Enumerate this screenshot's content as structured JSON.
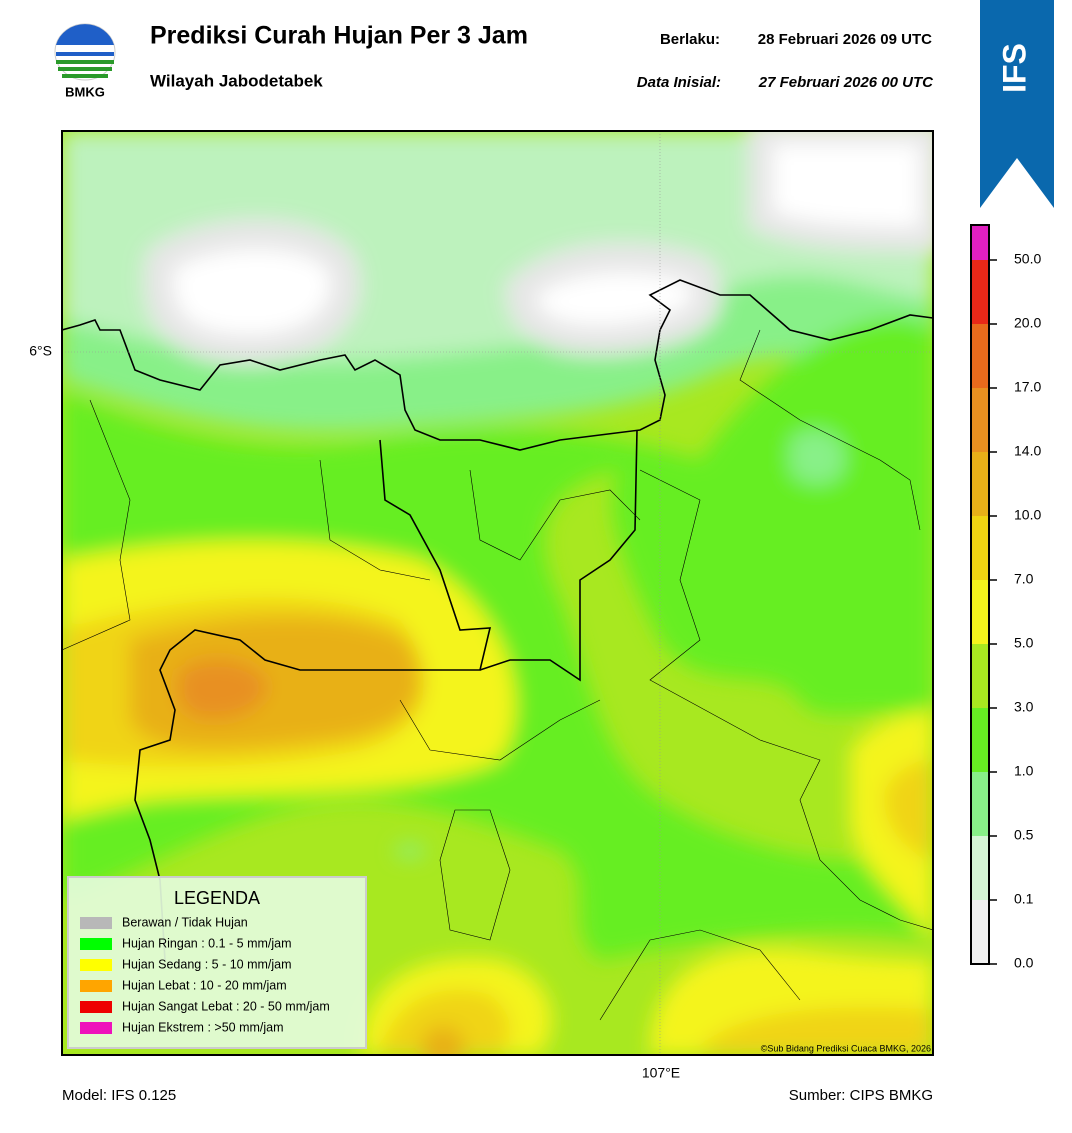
{
  "header": {
    "logo_text": "BMKG",
    "title": "Prediksi Curah Hujan Per 3 Jam",
    "subtitle": "Wilayah Jabodetabek",
    "valid_label": "Berlaku:",
    "valid_time": "28 Februari 2026 09 UTC",
    "init_label": "Data Inisial:",
    "init_time": "27 Februari 2026 00 UTC",
    "badge": "IFS"
  },
  "map": {
    "lat_label": "6°S",
    "lon_label": "107°E",
    "credit": "©Sub Bidang Prediksi Cuaca BMKG, 2026"
  },
  "legend": {
    "title": "LEGENDA",
    "items": [
      {
        "label": "Berawan / Tidak Hujan",
        "color": "#b8b8b8"
      },
      {
        "label": "Hujan Ringan : 0.1 - 5 mm/jam",
        "color": "#00ff00"
      },
      {
        "label": "Hujan Sedang : 5 - 10 mm/jam",
        "color": "#ffff00"
      },
      {
        "label": "Hujan Lebat : 10 - 20 mm/jam",
        "color": "#ffa500"
      },
      {
        "label": "Hujan Sangat Lebat : 20 - 50 mm/jam",
        "color": "#ee0000"
      },
      {
        "label": "Hujan Ekstrem : >50 mm/jam",
        "color": "#ee11bb"
      }
    ]
  },
  "colorbar": {
    "ticks": [
      "0.0",
      "0.1",
      "0.5",
      "1.0",
      "3.0",
      "5.0",
      "7.0",
      "10.0",
      "14.0",
      "17.0",
      "20.0",
      "50.0"
    ],
    "colors": [
      "#f0f0f0",
      "#d6f6d6",
      "#88f088",
      "#66ee22",
      "#a8e820",
      "#f4f41c",
      "#f0d412",
      "#e8b018",
      "#e89020",
      "#e86a1c",
      "#e82818",
      "#e020c0"
    ]
  },
  "footer": {
    "model": "Model: IFS 0.125",
    "source": "Sumber: CIPS BMKG"
  }
}
